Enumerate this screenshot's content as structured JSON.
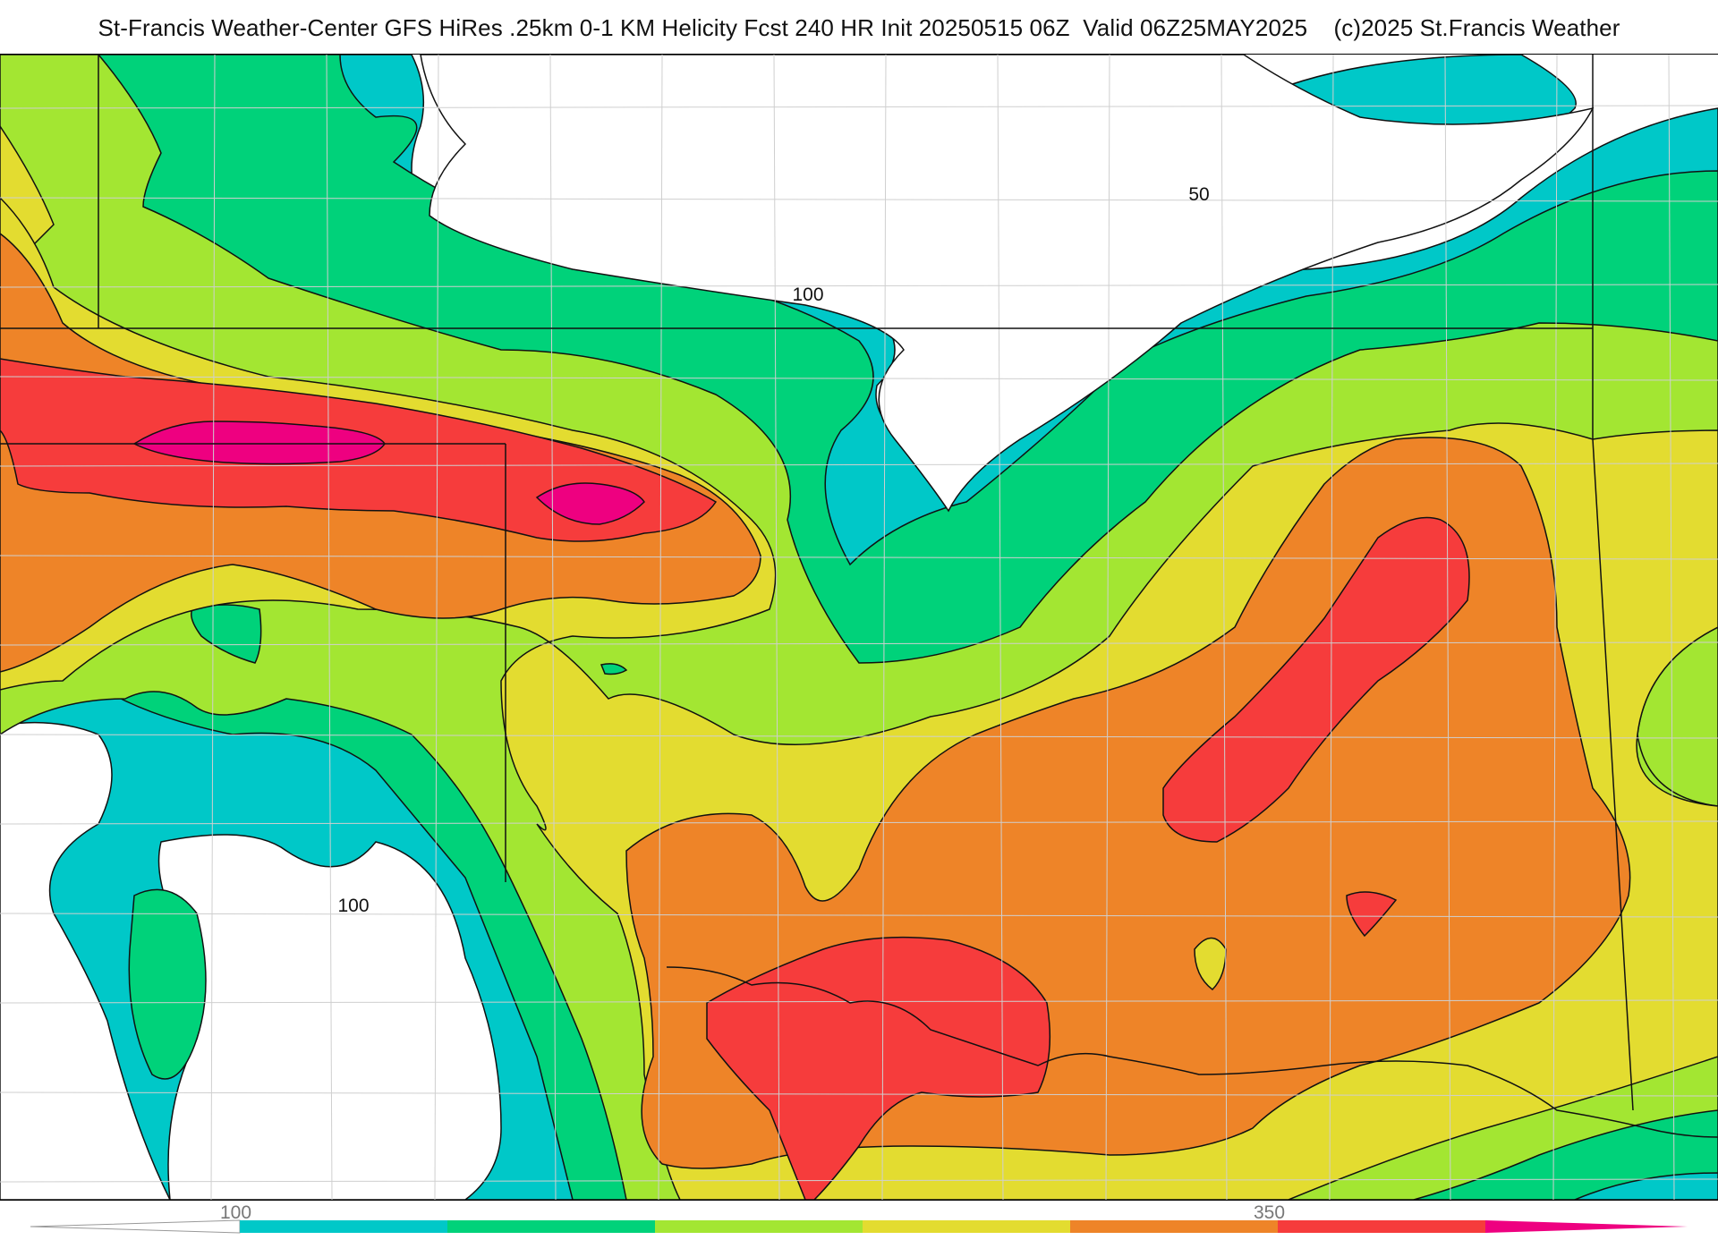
{
  "title": "St-Francis Weather-Center GFS HiRes .25km 0-1 KM Helicity Fcst 240 HR Init 20250515 06Z  Valid 06Z25MAY2025    (c)2025 St.Francis Weather",
  "contour_labels": {
    "north": "50",
    "mid": "100",
    "southwest": "100"
  },
  "colorbar": {
    "tick_labels": [
      "100",
      "350"
    ],
    "colors": [
      "#ffffff",
      "#00c8c8",
      "#00d27a",
      "#a3e632",
      "#e3dc30",
      "#ee8428",
      "#f63c3c",
      "#ee0080"
    ]
  },
  "palette": {
    "white": "#ffffff",
    "cyan": "#00c8c8",
    "green": "#00d27a",
    "lime": "#a3e632",
    "yellow": "#e3dc30",
    "orange": "#ee8428",
    "red": "#f63c3c",
    "magenta": "#ee0080"
  }
}
